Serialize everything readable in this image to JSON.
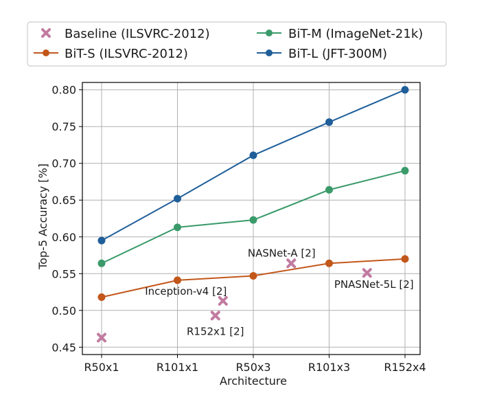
{
  "chart_data": {
    "type": "line",
    "xlabel": "Architecture",
    "ylabel": "Top-5 Accuracy [%]",
    "categories": [
      "R50x1",
      "R101x1",
      "R50x3",
      "R101x3",
      "R152x4"
    ],
    "ylim": [
      0.44,
      0.81
    ],
    "yticks": [
      "0.45",
      "0.50",
      "0.55",
      "0.60",
      "0.65",
      "0.70",
      "0.75",
      "0.80"
    ],
    "grid": true,
    "legend_position": "top",
    "series": [
      {
        "name": "BiT-S (ILSVRC-2012)",
        "color": "#c2571a",
        "values": [
          0.518,
          0.541,
          0.547,
          0.564,
          0.57
        ]
      },
      {
        "name": "BiT-M (ImageNet-21k)",
        "color": "#3a9a6a",
        "values": [
          0.564,
          0.613,
          0.623,
          0.664,
          0.69
        ]
      },
      {
        "name": "BiT-L (JFT-300M)",
        "color": "#1f5e99",
        "values": [
          0.595,
          0.652,
          0.711,
          0.756,
          0.8
        ]
      }
    ],
    "baseline": {
      "name": "Baseline (ILSVRC-2012)",
      "color": "#c27ba0",
      "points": [
        {
          "x": 0.0,
          "y": 0.463,
          "label": ""
        },
        {
          "x": 1.5,
          "y": 0.493,
          "label": "R152x1 [2]"
        },
        {
          "x": 1.6,
          "y": 0.513,
          "label": "Inception-v4 [2]"
        },
        {
          "x": 2.5,
          "y": 0.564,
          "label": "NASNet-A [2]"
        },
        {
          "x": 3.5,
          "y": 0.551,
          "label": "PNASNet-5L [2]"
        }
      ]
    }
  }
}
